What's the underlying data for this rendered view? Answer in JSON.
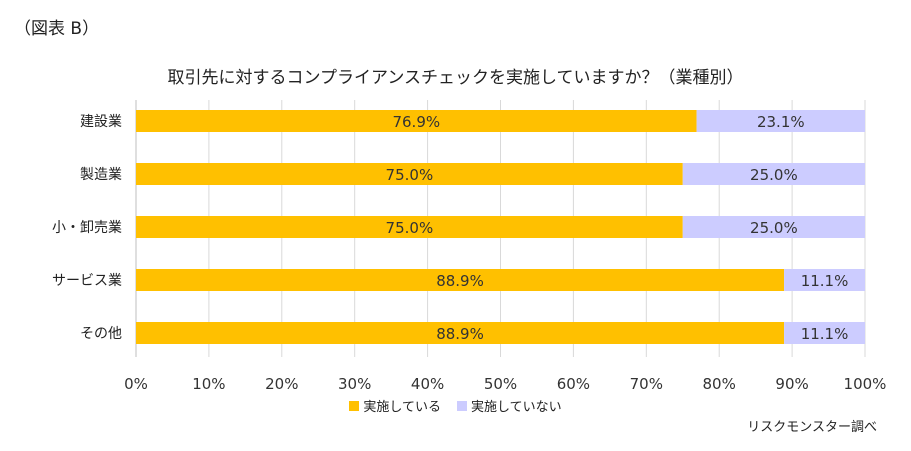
{
  "figure_label": "（図表 B）",
  "source_note": "リスクモンスター調べ",
  "colors": {
    "implemented": "#FFC000",
    "not_implemented": "#CCCCFF",
    "grid": "#D9D9D9",
    "axis": "#BFBFBF"
  },
  "chart_data": {
    "type": "bar",
    "orientation": "horizontal",
    "stacked": "percent",
    "title": "取引先に対するコンプライアンスチェックを実施していますか？（業種別）",
    "categories": [
      "建設業",
      "製造業",
      "小・卸売業",
      "サービス業",
      "その他"
    ],
    "series": [
      {
        "name": "実施している",
        "values": [
          76.9,
          75.0,
          75.0,
          88.9,
          88.9
        ],
        "labels": [
          "76.9%",
          "75.0%",
          "75.0%",
          "88.9%",
          "88.9%"
        ]
      },
      {
        "name": "実施していない",
        "values": [
          23.1,
          25.0,
          25.0,
          11.1,
          11.1
        ],
        "labels": [
          "23.1%",
          "25.0%",
          "25.0%",
          "11.1%",
          "11.1%"
        ]
      }
    ],
    "xlim": [
      0,
      100
    ],
    "xticks": [
      "0%",
      "10%",
      "20%",
      "30%",
      "40%",
      "50%",
      "60%",
      "70%",
      "80%",
      "90%",
      "100%"
    ],
    "grid": "vertical",
    "legend": "bottom"
  }
}
